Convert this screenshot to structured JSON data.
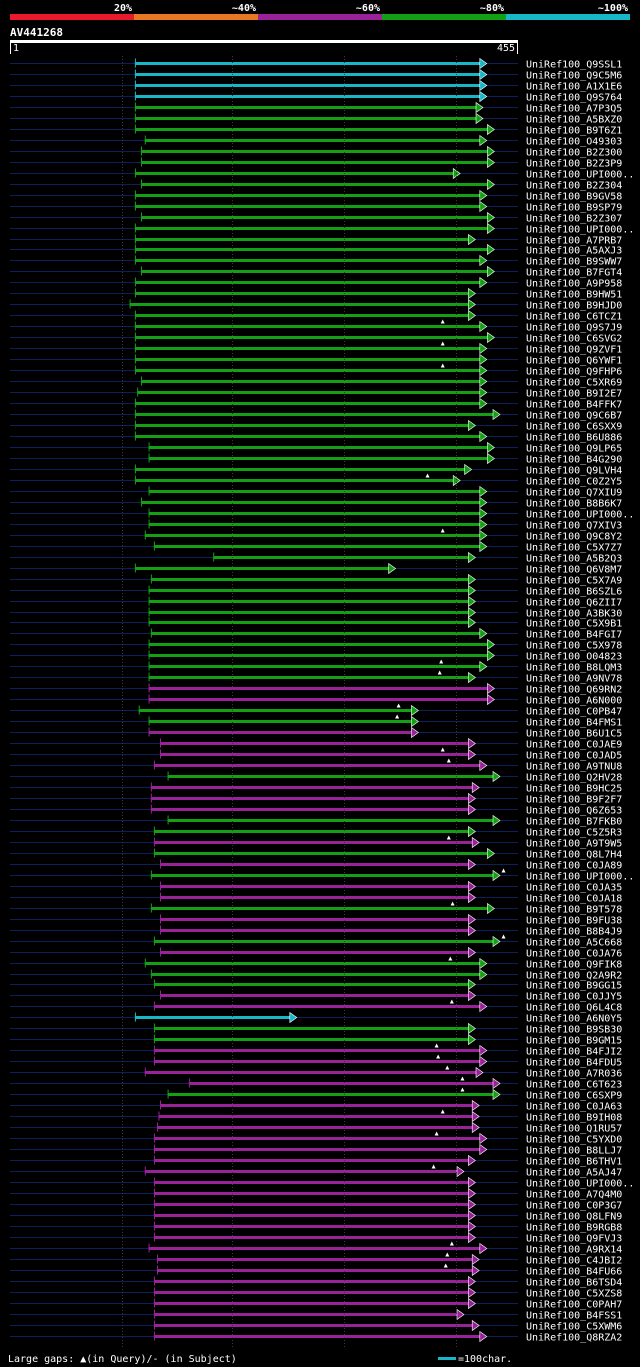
{
  "chart_data": {
    "type": "alignment-hit-map",
    "title": "AV441268",
    "query_length_range": [
      1,
      455
    ],
    "scale_labels": [
      "1",
      "455"
    ],
    "identity_legend": [
      {
        "label": "20%",
        "color": "#e8192c"
      },
      {
        "label": "~40%",
        "color": "#e87722"
      },
      {
        "label": "~60%",
        "color": "#992299"
      },
      {
        "label": "~80%",
        "color": "#14a014"
      },
      {
        "label": "~100%",
        "color": "#16b8c8"
      }
    ],
    "hits": [
      {
        "name": "UniRef100_Q9SSL1",
        "start": 167,
        "end": 630,
        "cls": 4,
        "gap": null
      },
      {
        "name": "UniRef100_Q9C5M6",
        "start": 167,
        "end": 630,
        "cls": 4,
        "gap": null
      },
      {
        "name": "UniRef100_A1X1E6",
        "start": 167,
        "end": 630,
        "cls": 4,
        "gap": null
      },
      {
        "name": "UniRef100_Q9S764",
        "start": 167,
        "end": 630,
        "cls": 4,
        "gap": null
      },
      {
        "name": "UniRef100_A7P3Q5",
        "start": 167,
        "end": 625,
        "cls": 3,
        "gap": null
      },
      {
        "name": "UniRef100_A5BXZ0",
        "start": 167,
        "end": 625,
        "cls": 3,
        "gap": null
      },
      {
        "name": "UniRef100_B9T6Z1",
        "start": 167,
        "end": 640,
        "cls": 3,
        "gap": null
      },
      {
        "name": "UniRef100_O49303",
        "start": 180,
        "end": 630,
        "cls": 3,
        "gap": null
      },
      {
        "name": "UniRef100_B2Z300",
        "start": 175,
        "end": 640,
        "cls": 3,
        "gap": null
      },
      {
        "name": "UniRef100_B2Z3P9",
        "start": 175,
        "end": 640,
        "cls": 3,
        "gap": null
      },
      {
        "name": "UniRef100_UPI000..",
        "start": 167,
        "end": 595,
        "cls": 3,
        "gap": null
      },
      {
        "name": "UniRef100_B2Z304",
        "start": 175,
        "end": 640,
        "cls": 3,
        "gap": null
      },
      {
        "name": "UniRef100_B9GV58",
        "start": 167,
        "end": 630,
        "cls": 3,
        "gap": null
      },
      {
        "name": "UniRef100_B9SP79",
        "start": 167,
        "end": 630,
        "cls": 3,
        "gap": null
      },
      {
        "name": "UniRef100_B2Z307",
        "start": 175,
        "end": 640,
        "cls": 3,
        "gap": null
      },
      {
        "name": "UniRef100_UPI000..",
        "start": 167,
        "end": 640,
        "cls": 3,
        "gap": null
      },
      {
        "name": "UniRef100_A7PRB7",
        "start": 167,
        "end": 615,
        "cls": 3,
        "gap": null
      },
      {
        "name": "UniRef100_A5AXJ3",
        "start": 167,
        "end": 640,
        "cls": 3,
        "gap": null
      },
      {
        "name": "UniRef100_B9SWW7",
        "start": 167,
        "end": 630,
        "cls": 3,
        "gap": null
      },
      {
        "name": "UniRef100_B7FGT4",
        "start": 175,
        "end": 640,
        "cls": 3,
        "gap": null
      },
      {
        "name": "UniRef100_A9P958",
        "start": 167,
        "end": 630,
        "cls": 3,
        "gap": null
      },
      {
        "name": "UniRef100_B9HW51",
        "start": 167,
        "end": 615,
        "cls": 3,
        "gap": null
      },
      {
        "name": "UniRef100_B9HJD0",
        "start": 160,
        "end": 615,
        "cls": 3,
        "gap": null
      },
      {
        "name": "UniRef100_C6TCZ1",
        "start": 167,
        "end": 615,
        "cls": 3,
        "gap": null
      },
      {
        "name": "UniRef100_Q9S7J9",
        "start": 167,
        "end": 630,
        "cls": 3,
        "gap": 572
      },
      {
        "name": "UniRef100_C6SVG2",
        "start": 167,
        "end": 640,
        "cls": 3,
        "gap": null
      },
      {
        "name": "UniRef100_Q9ZVF1",
        "start": 167,
        "end": 630,
        "cls": 3,
        "gap": 572
      },
      {
        "name": "UniRef100_Q6YWF1",
        "start": 167,
        "end": 630,
        "cls": 3,
        "gap": null
      },
      {
        "name": "UniRef100_Q9FHP6",
        "start": 167,
        "end": 630,
        "cls": 3,
        "gap": 572
      },
      {
        "name": "UniRef100_C5XR69",
        "start": 175,
        "end": 630,
        "cls": 3,
        "gap": null
      },
      {
        "name": "UniRef100_B9I2E7",
        "start": 170,
        "end": 630,
        "cls": 3,
        "gap": null
      },
      {
        "name": "UniRef100_B4FFK7",
        "start": 167,
        "end": 630,
        "cls": 3,
        "gap": null
      },
      {
        "name": "UniRef100_Q9C6B7",
        "start": 167,
        "end": 650,
        "cls": 3,
        "gap": null
      },
      {
        "name": "UniRef100_C6SXX9",
        "start": 167,
        "end": 615,
        "cls": 3,
        "gap": null
      },
      {
        "name": "UniRef100_B6U886",
        "start": 167,
        "end": 630,
        "cls": 3,
        "gap": null
      },
      {
        "name": "UniRef100_Q9LP65",
        "start": 185,
        "end": 640,
        "cls": 3,
        "gap": null
      },
      {
        "name": "UniRef100_B4G290",
        "start": 185,
        "end": 640,
        "cls": 3,
        "gap": null
      },
      {
        "name": "UniRef100_Q9LVH4",
        "start": 167,
        "end": 610,
        "cls": 3,
        "gap": null
      },
      {
        "name": "UniRef100_C0Z2Y5",
        "start": 167,
        "end": 595,
        "cls": 3,
        "gap": 552
      },
      {
        "name": "UniRef100_Q7XIU9",
        "start": 185,
        "end": 630,
        "cls": 3,
        "gap": null
      },
      {
        "name": "UniRef100_B8B6K7",
        "start": 175,
        "end": 630,
        "cls": 3,
        "gap": null
      },
      {
        "name": "UniRef100_UPI000..",
        "start": 185,
        "end": 630,
        "cls": 3,
        "gap": null
      },
      {
        "name": "UniRef100_Q7XIV3",
        "start": 185,
        "end": 630,
        "cls": 3,
        "gap": null
      },
      {
        "name": "UniRef100_Q9C8Y2",
        "start": 180,
        "end": 630,
        "cls": 3,
        "gap": 572
      },
      {
        "name": "UniRef100_C5X7Z7",
        "start": 192,
        "end": 630,
        "cls": 3,
        "gap": null
      },
      {
        "name": "UniRef100_A5B2Q3",
        "start": 270,
        "end": 615,
        "cls": 3,
        "gap": null
      },
      {
        "name": "UniRef100_Q6V8M7",
        "start": 167,
        "end": 510,
        "cls": 3,
        "gap": null
      },
      {
        "name": "UniRef100_C5X7A9",
        "start": 188,
        "end": 615,
        "cls": 3,
        "gap": null
      },
      {
        "name": "UniRef100_B6SZL6",
        "start": 185,
        "end": 615,
        "cls": 3,
        "gap": null
      },
      {
        "name": "UniRef100_Q6ZII7",
        "start": 185,
        "end": 615,
        "cls": 3,
        "gap": null
      },
      {
        "name": "UniRef100_A3BK30",
        "start": 185,
        "end": 615,
        "cls": 3,
        "gap": null
      },
      {
        "name": "UniRef100_C5X9B1",
        "start": 185,
        "end": 615,
        "cls": 3,
        "gap": null
      },
      {
        "name": "UniRef100_B4FGI7",
        "start": 188,
        "end": 630,
        "cls": 3,
        "gap": null
      },
      {
        "name": "UniRef100_C5X978",
        "start": 185,
        "end": 640,
        "cls": 3,
        "gap": null
      },
      {
        "name": "UniRef100_O04823",
        "start": 185,
        "end": 640,
        "cls": 3,
        "gap": null
      },
      {
        "name": "UniRef100_B8LQM3",
        "start": 185,
        "end": 630,
        "cls": 3,
        "gap": 570
      },
      {
        "name": "UniRef100_A9NV78",
        "start": 185,
        "end": 615,
        "cls": 3,
        "gap": 568
      },
      {
        "name": "UniRef100_Q69RN2",
        "start": 185,
        "end": 640,
        "cls": 2,
        "gap": null
      },
      {
        "name": "UniRef100_A6N000",
        "start": 185,
        "end": 640,
        "cls": 2,
        "gap": null
      },
      {
        "name": "UniRef100_C0PB47",
        "start": 172,
        "end": 540,
        "cls": 3,
        "gap": 514
      },
      {
        "name": "UniRef100_B4FMS1",
        "start": 185,
        "end": 540,
        "cls": 3,
        "gap": 512
      },
      {
        "name": "UniRef100_B6U1C5",
        "start": 185,
        "end": 540,
        "cls": 2,
        "gap": null
      },
      {
        "name": "UniRef100_C0JAE9",
        "start": 200,
        "end": 615,
        "cls": 2,
        "gap": null
      },
      {
        "name": "UniRef100_C0JAD5",
        "start": 200,
        "end": 615,
        "cls": 2,
        "gap": 572
      },
      {
        "name": "UniRef100_A9TNU8",
        "start": 192,
        "end": 630,
        "cls": 2,
        "gap": 580
      },
      {
        "name": "UniRef100_Q2HV28",
        "start": 210,
        "end": 650,
        "cls": 3,
        "gap": null
      },
      {
        "name": "UniRef100_B9HC25",
        "start": 188,
        "end": 620,
        "cls": 2,
        "gap": null
      },
      {
        "name": "UniRef100_B9F2F7",
        "start": 188,
        "end": 615,
        "cls": 2,
        "gap": null
      },
      {
        "name": "UniRef100_Q6Z653",
        "start": 188,
        "end": 615,
        "cls": 2,
        "gap": null
      },
      {
        "name": "UniRef100_B7FKB0",
        "start": 210,
        "end": 650,
        "cls": 3,
        "gap": null
      },
      {
        "name": "UniRef100_C5Z5R3",
        "start": 192,
        "end": 615,
        "cls": 3,
        "gap": null
      },
      {
        "name": "UniRef100_A9T9W5",
        "start": 192,
        "end": 620,
        "cls": 2,
        "gap": 580
      },
      {
        "name": "UniRef100_Q8L7H4",
        "start": 192,
        "end": 640,
        "cls": 3,
        "gap": null
      },
      {
        "name": "UniRef100_C0JA89",
        "start": 200,
        "end": 615,
        "cls": 2,
        "gap": null
      },
      {
        "name": "UniRef100_UPI000..",
        "start": 188,
        "end": 660,
        "cls": 3,
        "gap": 652
      },
      {
        "name": "UniRef100_C0JA35",
        "start": 200,
        "end": 615,
        "cls": 2,
        "gap": null
      },
      {
        "name": "UniRef100_C0JA18",
        "start": 200,
        "end": 615,
        "cls": 2,
        "gap": null
      },
      {
        "name": "UniRef100_B9T578",
        "start": 188,
        "end": 640,
        "cls": 3,
        "gap": 585
      },
      {
        "name": "UniRef100_B9FU38",
        "start": 200,
        "end": 615,
        "cls": 2,
        "gap": null
      },
      {
        "name": "UniRef100_B8B4J9",
        "start": 200,
        "end": 615,
        "cls": 2,
        "gap": null
      },
      {
        "name": "UniRef100_A5C668",
        "start": 192,
        "end": 660,
        "cls": 3,
        "gap": 652
      },
      {
        "name": "UniRef100_C0JA76",
        "start": 200,
        "end": 615,
        "cls": 2,
        "gap": null
      },
      {
        "name": "UniRef100_Q9FIK8",
        "start": 180,
        "end": 630,
        "cls": 3,
        "gap": 582
      },
      {
        "name": "UniRef100_Q2A9R2",
        "start": 188,
        "end": 630,
        "cls": 3,
        "gap": null
      },
      {
        "name": "UniRef100_B9GG15",
        "start": 192,
        "end": 615,
        "cls": 3,
        "gap": null
      },
      {
        "name": "UniRef100_C0JJY5",
        "start": 200,
        "end": 615,
        "cls": 2,
        "gap": null
      },
      {
        "name": "UniRef100_Q6L4C8",
        "start": 192,
        "end": 630,
        "cls": 2,
        "gap": 584
      },
      {
        "name": "UniRef100_A6N0Y5",
        "start": 167,
        "end": 380,
        "cls": 4,
        "gap": null
      },
      {
        "name": "UniRef100_B9SB30",
        "start": 192,
        "end": 615,
        "cls": 3,
        "gap": null
      },
      {
        "name": "UniRef100_B9GM15",
        "start": 192,
        "end": 615,
        "cls": 3,
        "gap": null
      },
      {
        "name": "UniRef100_B4FJI2",
        "start": 192,
        "end": 630,
        "cls": 2,
        "gap": 564
      },
      {
        "name": "UniRef100_B4FDU5",
        "start": 192,
        "end": 630,
        "cls": 2,
        "gap": 566
      },
      {
        "name": "UniRef100_A7R036",
        "start": 180,
        "end": 625,
        "cls": 2,
        "gap": 578
      },
      {
        "name": "UniRef100_C6T623",
        "start": 238,
        "end": 650,
        "cls": 2,
        "gap": 598
      },
      {
        "name": "UniRef100_C6SXP9",
        "start": 210,
        "end": 650,
        "cls": 3,
        "gap": 598
      },
      {
        "name": "UniRef100_C0JA63",
        "start": 200,
        "end": 620,
        "cls": 2,
        "gap": null
      },
      {
        "name": "UniRef100_B9IH08",
        "start": 198,
        "end": 620,
        "cls": 2,
        "gap": 572
      },
      {
        "name": "UniRef100_Q1RU57",
        "start": 196,
        "end": 620,
        "cls": 2,
        "gap": null
      },
      {
        "name": "UniRef100_C5YXD0",
        "start": 192,
        "end": 630,
        "cls": 2,
        "gap": 564
      },
      {
        "name": "UniRef100_B8LLJ7",
        "start": 192,
        "end": 630,
        "cls": 2,
        "gap": null
      },
      {
        "name": "UniRef100_B6THV1",
        "start": 192,
        "end": 615,
        "cls": 2,
        "gap": null
      },
      {
        "name": "UniRef100_A5AJ47",
        "start": 180,
        "end": 600,
        "cls": 2,
        "gap": 560
      },
      {
        "name": "UniRef100_UPI000..",
        "start": 192,
        "end": 615,
        "cls": 2,
        "gap": null
      },
      {
        "name": "UniRef100_A7Q4M0",
        "start": 192,
        "end": 615,
        "cls": 2,
        "gap": null
      },
      {
        "name": "UniRef100_C0P3G7",
        "start": 192,
        "end": 615,
        "cls": 2,
        "gap": null
      },
      {
        "name": "UniRef100_Q8LFN9",
        "start": 192,
        "end": 615,
        "cls": 2,
        "gap": null
      },
      {
        "name": "UniRef100_B9RGB8",
        "start": 192,
        "end": 615,
        "cls": 2,
        "gap": null
      },
      {
        "name": "UniRef100_Q9FVJ3",
        "start": 192,
        "end": 615,
        "cls": 2,
        "gap": null
      },
      {
        "name": "UniRef100_A9RX14",
        "start": 185,
        "end": 630,
        "cls": 2,
        "gap": 584
      },
      {
        "name": "UniRef100_C4JBI2",
        "start": 196,
        "end": 620,
        "cls": 2,
        "gap": 578
      },
      {
        "name": "UniRef100_B4FU66",
        "start": 196,
        "end": 620,
        "cls": 2,
        "gap": 576
      },
      {
        "name": "UniRef100_B6TSD4",
        "start": 192,
        "end": 615,
        "cls": 2,
        "gap": null
      },
      {
        "name": "UniRef100_C5XZS8",
        "start": 192,
        "end": 615,
        "cls": 2,
        "gap": null
      },
      {
        "name": "UniRef100_C0PAH7",
        "start": 192,
        "end": 615,
        "cls": 2,
        "gap": null
      },
      {
        "name": "UniRef100_B4FSS1",
        "start": 192,
        "end": 600,
        "cls": 2,
        "gap": null
      },
      {
        "name": "UniRef100_C5XWM6",
        "start": 192,
        "end": 620,
        "cls": 2,
        "gap": null
      },
      {
        "name": "UniRef100_Q8RZA2",
        "start": 192,
        "end": 630,
        "cls": 2,
        "gap": null
      }
    ],
    "footer_left": "Large gaps: ▲(in Query)/- (in Subject)",
    "footer_right": "=100char."
  }
}
